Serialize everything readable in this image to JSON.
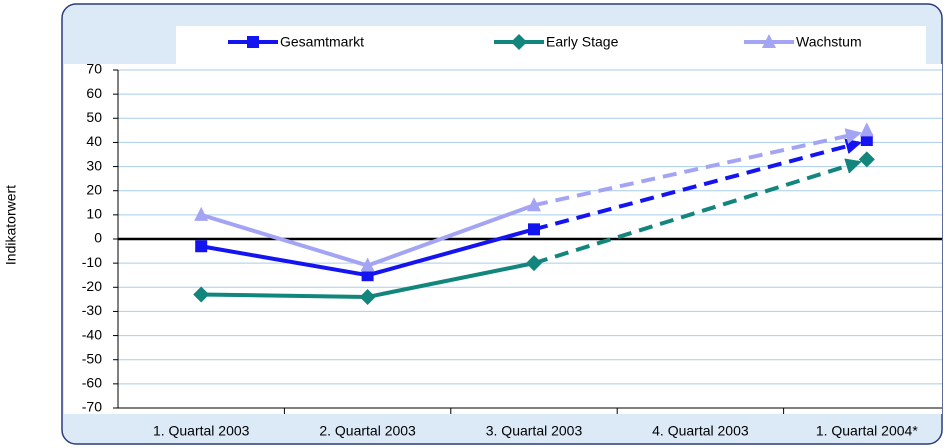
{
  "chart_data": {
    "type": "line",
    "categories": [
      "1. Quartal 2003",
      "2. Quartal 2003",
      "3. Quartal 2003",
      "4. Quartal 2003",
      "1. Quartal 2004*"
    ],
    "series": [
      {
        "name": "Gesamtmarkt",
        "color": "#1414f0",
        "marker": "square",
        "values": [
          -3,
          -15,
          4,
          null,
          41
        ]
      },
      {
        "name": "Early Stage",
        "color": "#12857c",
        "marker": "diamond",
        "values": [
          -23,
          -24,
          -10,
          null,
          33
        ]
      },
      {
        "name": "Wachstum",
        "color": "#a4a4f4",
        "marker": "triangle",
        "values": [
          10,
          -11,
          14,
          null,
          45
        ]
      }
    ],
    "y_label": "Indikatorwert",
    "ylim": [
      -70,
      70
    ],
    "yticks": [
      -70,
      -60,
      -50,
      -40,
      -30,
      -20,
      -10,
      0,
      10,
      20,
      30,
      40,
      50,
      60,
      70
    ],
    "grid": true
  }
}
